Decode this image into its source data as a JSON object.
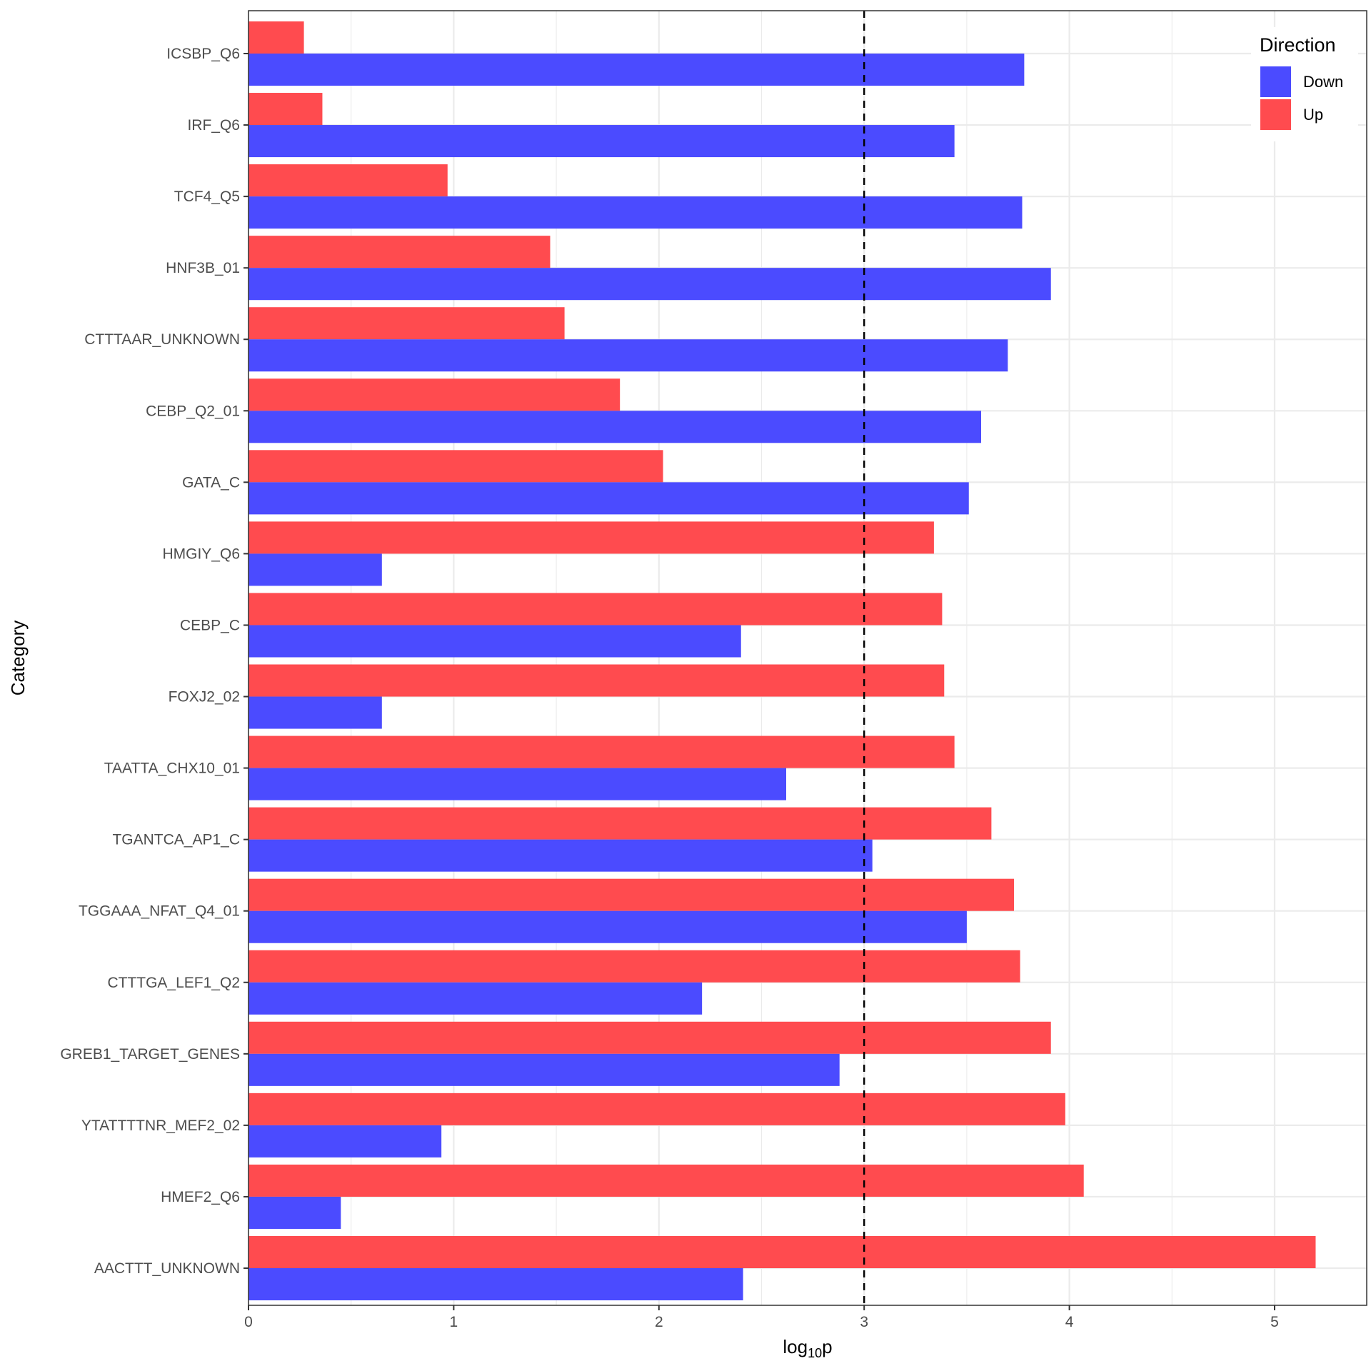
{
  "chart_data": {
    "type": "bar",
    "orientation": "horizontal",
    "title": "",
    "xlabel": "log10p",
    "xlabel_main": "log",
    "xlabel_sub": "10",
    "xlabel_tail": "p",
    "ylabel": "Category",
    "xlim": [
      0,
      5.45
    ],
    "xticks": [
      0,
      1,
      2,
      3,
      4,
      5
    ],
    "grid": true,
    "reference_line": {
      "x": 3,
      "style": "dashed",
      "color": "#000000"
    },
    "legend": {
      "title": "Direction",
      "placement": "top-right",
      "entries": [
        {
          "name": "Down",
          "color": "#4b4bff"
        },
        {
          "name": "Up",
          "color": "#ff4b4f"
        }
      ]
    },
    "categories": [
      "ICSBP_Q6",
      "IRF_Q6",
      "TCF4_Q5",
      "HNF3B_01",
      "CTTTAAR_UNKNOWN",
      "CEBP_Q2_01",
      "GATA_C",
      "HMGIY_Q6",
      "CEBP_C",
      "FOXJ2_02",
      "TAATTA_CHX10_01",
      "TGANTCA_AP1_C",
      "TGGAAA_NFAT_Q4_01",
      "CTTTGA_LEF1_Q2",
      "GREB1_TARGET_GENES",
      "YTATTTTNR_MEF2_02",
      "HMEF2_Q6",
      "AACTTT_UNKNOWN"
    ],
    "series": [
      {
        "name": "Down",
        "color": "#4b4bff",
        "values": [
          3.78,
          3.44,
          3.77,
          3.91,
          3.7,
          3.57,
          3.51,
          0.65,
          2.4,
          0.65,
          2.62,
          3.04,
          3.5,
          2.21,
          2.88,
          0.94,
          0.45,
          2.41
        ]
      },
      {
        "name": "Up",
        "color": "#ff4b4f",
        "values": [
          0.27,
          0.36,
          0.97,
          1.47,
          1.54,
          1.81,
          2.02,
          3.34,
          3.38,
          3.39,
          3.44,
          3.62,
          3.73,
          3.76,
          3.91,
          3.98,
          4.07,
          5.2
        ]
      }
    ]
  }
}
